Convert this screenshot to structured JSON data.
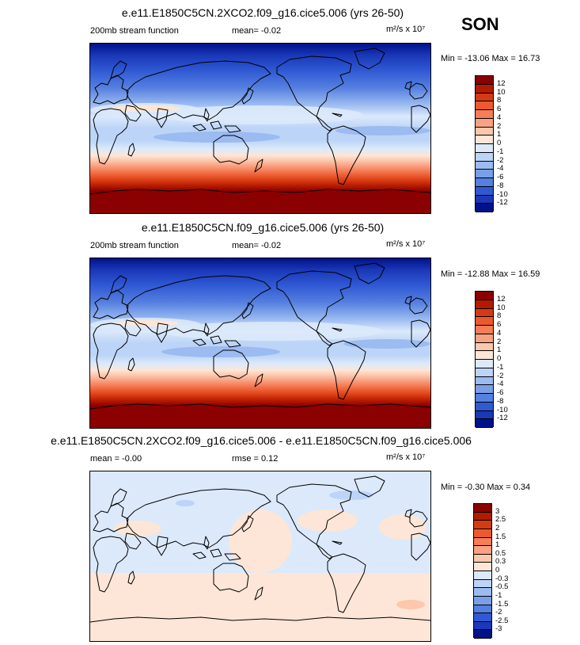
{
  "season": "SON",
  "panels": [
    {
      "title": "e.e11.E1850C5CN.2XCO2.f09_g16.cice5.006 (yrs 26-50)",
      "left_label": "200mb stream function",
      "mean_label": "mean=  -0.02",
      "units": "m²/s x 10⁷",
      "minmax": "Min = -13.06 Max =  16.73",
      "kind": "abs"
    },
    {
      "title": "e.e11.E1850C5CN.f09_g16.cice5.006 (yrs 26-50)",
      "left_label": "200mb stream function",
      "mean_label": "mean=  -0.02",
      "units": "m²/s x 10⁷",
      "minmax": "Min = -12.88 Max =  16.59",
      "kind": "abs"
    },
    {
      "title": "e.e11.E1850C5CN.2XCO2.f09_g16.cice5.006 - e.e11.E1850C5CN.f09_g16.cice5.006",
      "left_label": "mean =  -0.00",
      "mean_label": "rmse =  0.12",
      "units": "m²/s x 10⁷",
      "minmax": "Min = -0.30 Max =  0.34",
      "kind": "diff"
    }
  ],
  "colorbar_abs": {
    "labels": [
      "12",
      "10",
      "8",
      "6",
      "4",
      "2",
      "1",
      "0",
      "-1",
      "-2",
      "-4",
      "-6",
      "-8",
      "-10",
      "-12"
    ],
    "colors": [
      "#8b0000",
      "#b51a00",
      "#d63a12",
      "#eb5a2e",
      "#f57d57",
      "#f9a283",
      "#fcc7ad",
      "#fde6d7",
      "#dbe9fb",
      "#bcd4f7",
      "#9bbbf1",
      "#7a9fe8",
      "#557fe0",
      "#3059d4",
      "#1a38b8",
      "#00128a"
    ]
  },
  "colorbar_diff": {
    "labels": [
      "3",
      "2.5",
      "2",
      "1.5",
      "1",
      "0.5",
      "0.3",
      "0",
      "-0.3",
      "-0.5",
      "-1",
      "-1.5",
      "-2",
      "-2.5",
      "-3"
    ],
    "colors": [
      "#8b0000",
      "#b51a00",
      "#d63a12",
      "#eb5a2e",
      "#f57d57",
      "#f9a283",
      "#fcc7ad",
      "#fde6d7",
      "#dbe9fb",
      "#bcd4f7",
      "#9bbbf1",
      "#7a9fe8",
      "#557fe0",
      "#3059d4",
      "#1a38b8",
      "#00128a"
    ]
  }
}
